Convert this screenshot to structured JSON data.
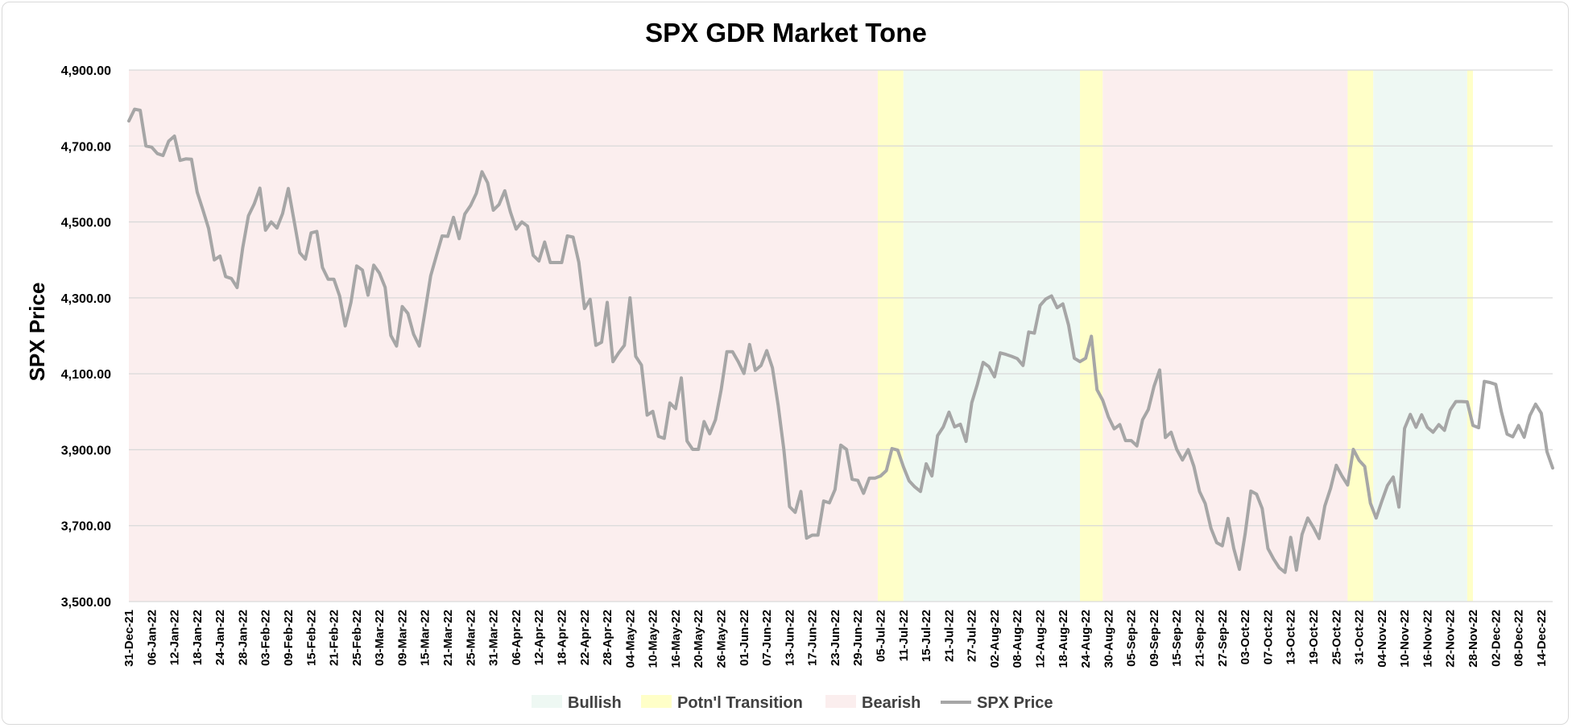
{
  "chart_data": {
    "type": "line",
    "title": "SPX GDR Market Tone",
    "ylabel": "SPX Price",
    "xlabel": "",
    "ylim": [
      3500,
      4900
    ],
    "y_ticks": [
      "4,900.00",
      "4,700.00",
      "4,500.00",
      "4,300.00",
      "4,100.00",
      "3,900.00",
      "3,700.00",
      "3,500.00"
    ],
    "y_tick_values": [
      4900,
      4700,
      4500,
      4300,
      4100,
      3900,
      3700,
      3500
    ],
    "x_ticks": [
      "31-Dec-21",
      "06-Jan-22",
      "12-Jan-22",
      "18-Jan-22",
      "24-Jan-22",
      "28-Jan-22",
      "03-Feb-22",
      "09-Feb-22",
      "15-Feb-22",
      "21-Feb-22",
      "25-Feb-22",
      "03-Mar-22",
      "09-Mar-22",
      "15-Mar-22",
      "21-Mar-22",
      "25-Mar-22",
      "31-Mar-22",
      "06-Apr-22",
      "12-Apr-22",
      "18-Apr-22",
      "22-Apr-22",
      "28-Apr-22",
      "04-May-22",
      "10-May-22",
      "16-May-22",
      "20-May-22",
      "26-May-22",
      "01-Jun-22",
      "07-Jun-22",
      "13-Jun-22",
      "17-Jun-22",
      "23-Jun-22",
      "29-Jun-22",
      "05-Jul-22",
      "11-Jul-22",
      "15-Jul-22",
      "21-Jul-22",
      "27-Jul-22",
      "02-Aug-22",
      "08-Aug-22",
      "12-Aug-22",
      "18-Aug-22",
      "24-Aug-22",
      "30-Aug-22",
      "05-Sep-22",
      "09-Sep-22",
      "15-Sep-22",
      "21-Sep-22",
      "27-Sep-22",
      "03-Oct-22",
      "07-Oct-22",
      "13-Oct-22",
      "19-Oct-22",
      "25-Oct-22",
      "31-Oct-22",
      "04-Nov-22",
      "10-Nov-22",
      "16-Nov-22",
      "22-Nov-22",
      "28-Nov-22",
      "02-Dec-22",
      "08-Dec-22",
      "14-Dec-22"
    ],
    "regions": [
      {
        "tone": "Bearish",
        "start": 0,
        "end": 131.5
      },
      {
        "tone": "Potn'l Transition",
        "start": 131.5,
        "end": 136
      },
      {
        "tone": "Bullish",
        "start": 136,
        "end": 167
      },
      {
        "tone": "Potn'l Transition",
        "start": 167,
        "end": 171
      },
      {
        "tone": "Bearish",
        "start": 171,
        "end": 214
      },
      {
        "tone": "Potn'l Transition",
        "start": 214,
        "end": 218.5
      },
      {
        "tone": "Bullish",
        "start": 218.5,
        "end": 235
      },
      {
        "tone": "Potn'l Transition",
        "start": 235,
        "end": 236
      }
    ],
    "series": [
      {
        "name": "SPX Price",
        "color": "#a6a6a6",
        "values": [
          4766,
          4797,
          4794,
          4700,
          4697,
          4680,
          4675,
          4713,
          4726,
          4662,
          4666,
          4665,
          4578,
          4532,
          4483,
          4400,
          4410,
          4356,
          4351,
          4327,
          4432,
          4516,
          4547,
          4589,
          4478,
          4500,
          4484,
          4522,
          4588,
          4504,
          4419,
          4402,
          4471,
          4475,
          4380,
          4349,
          4349,
          4305,
          4226,
          4288,
          4384,
          4373,
          4307,
          4386,
          4365,
          4328,
          4201,
          4173,
          4277,
          4259,
          4204,
          4173,
          4263,
          4358,
          4411,
          4463,
          4462,
          4512,
          4456,
          4521,
          4543,
          4575,
          4632,
          4603,
          4531,
          4546,
          4582,
          4526,
          4481,
          4500,
          4489,
          4412,
          4397,
          4447,
          4393,
          4393,
          4393,
          4463,
          4460,
          4394,
          4272,
          4296,
          4175,
          4183,
          4288,
          4132,
          4155,
          4175,
          4300,
          4146,
          4123,
          3991,
          4001,
          3935,
          3930,
          4023,
          4008,
          4089,
          3923,
          3901,
          3901,
          3974,
          3942,
          3979,
          4058,
          4158,
          4158,
          4132,
          4101,
          4177,
          4109,
          4122,
          4161,
          4116,
          4018,
          3901,
          3750,
          3735,
          3790,
          3667,
          3675,
          3675,
          3765,
          3760,
          3795,
          3912,
          3901,
          3822,
          3819,
          3785,
          3825,
          3825,
          3831,
          3845,
          3903,
          3899,
          3855,
          3818,
          3802,
          3790,
          3863,
          3831,
          3937,
          3960,
          3999,
          3960,
          3967,
          3922,
          4024,
          4073,
          4130,
          4119,
          4092,
          4155,
          4151,
          4146,
          4140,
          4122,
          4210,
          4207,
          4280,
          4297,
          4305,
          4274,
          4284,
          4228,
          4141,
          4132,
          4141,
          4199,
          4058,
          4030,
          3986,
          3955,
          3966,
          3924,
          3924,
          3910,
          3979,
          4006,
          4067,
          4110,
          3932,
          3946,
          3901,
          3873,
          3900,
          3856,
          3790,
          3758,
          3693,
          3655,
          3647,
          3719,
          3640,
          3585,
          3678,
          3791,
          3783,
          3745,
          3640,
          3612,
          3589,
          3577,
          3669,
          3583,
          3677,
          3720,
          3695,
          3666,
          3752,
          3798,
          3859,
          3831,
          3807,
          3901,
          3872,
          3856,
          3759,
          3720,
          3764,
          3806,
          3828,
          3749,
          3956,
          3993,
          3959,
          3992,
          3959,
          3946,
          3966,
          3951,
          4004,
          4027,
          4027,
          4026,
          3964,
          3958,
          4080,
          4077,
          4072,
          3999,
          3941,
          3934,
          3964,
          3933,
          3990,
          4020,
          3996,
          3895,
          3852
        ]
      }
    ],
    "legend": {
      "placement": "bottom",
      "entries": [
        {
          "label": "Bullish",
          "color": "#eef8f3"
        },
        {
          "label": "Potn'l Transition",
          "color": "#ffffc8"
        },
        {
          "label": "Bearish",
          "color": "#fbeeee"
        },
        {
          "label": "SPX Price",
          "color": "#a6a6a6"
        }
      ]
    },
    "region_colors": {
      "Bullish": "#eef8f3",
      "Potn'l Transition": "#ffffc8",
      "Bearish": "#fbeeee"
    },
    "grid": true,
    "grid_color": "#d9d9d9"
  }
}
